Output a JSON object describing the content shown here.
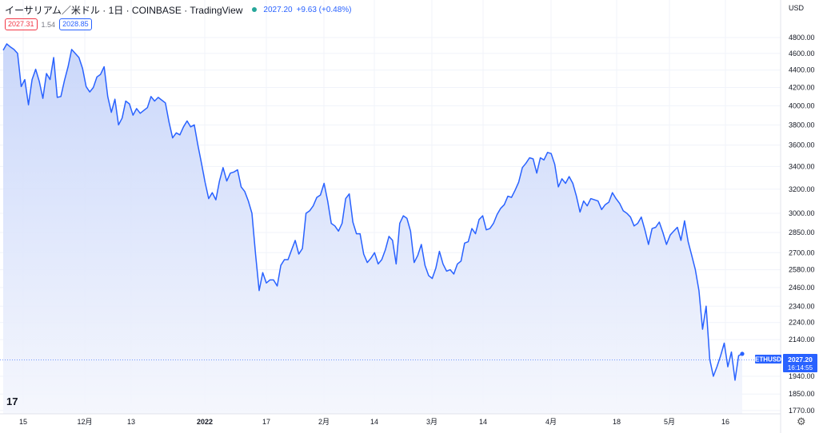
{
  "header": {
    "symbol_title": "イーサリアム／米ドル · 1日 · COINBASE · TradingView",
    "last_price": "2027.20",
    "change": "+9.63 (+0.48%)",
    "sell_price": "2027.31",
    "spread": "1.54",
    "buy_price": "2028.85"
  },
  "currency_label": "USD",
  "tv_logo": "17",
  "price_tag": {
    "symbol": "ETHUSD",
    "price": "2027.20",
    "countdown": "16:14:55"
  },
  "colors": {
    "line": "#2962ff",
    "fill_top": "#c7d5fa",
    "fill_bottom": "#f4f6fd",
    "sell": "#f23645",
    "buy": "#2962ff",
    "status_dot": "#26a69a"
  },
  "chart_data": {
    "type": "area",
    "scale": "log",
    "y_ticks": [
      "4800.00",
      "4600.00",
      "4400.00",
      "4200.00",
      "4000.00",
      "3800.00",
      "3600.00",
      "3400.00",
      "3200.00",
      "3000.00",
      "2850.00",
      "2700.00",
      "2580.00",
      "2460.00",
      "2340.00",
      "2240.00",
      "2140.00",
      "1940.00",
      "1850.00",
      "1770.00"
    ],
    "x_ticks": [
      "15",
      "12月",
      "13",
      "2022",
      "17",
      "2月",
      "14",
      "3月",
      "14",
      "4月",
      "18",
      "5月",
      "16"
    ],
    "ylim": [
      1720,
      4950
    ],
    "series": [
      {
        "values": [
          4640,
          4720,
          4680,
          4650,
          4600,
          4210,
          4290,
          4010,
          4290,
          4410,
          4270,
          4080,
          4360,
          4290,
          4550,
          4090,
          4100,
          4280,
          4440,
          4650,
          4600,
          4550,
          4420,
          4210,
          4150,
          4200,
          4320,
          4350,
          4440,
          4100,
          3930,
          4070,
          3800,
          3870,
          4050,
          4020,
          3900,
          3970,
          3920,
          3950,
          3980,
          4100,
          4050,
          4090,
          4060,
          4030,
          3830,
          3670,
          3720,
          3700,
          3780,
          3840,
          3780,
          3800,
          3600,
          3430,
          3260,
          3120,
          3170,
          3110,
          3270,
          3390,
          3270,
          3340,
          3350,
          3370,
          3220,
          3180,
          3100,
          3000,
          2690,
          2440,
          2560,
          2490,
          2510,
          2510,
          2470,
          2610,
          2650,
          2650,
          2720,
          2790,
          2690,
          2730,
          3000,
          3020,
          3060,
          3130,
          3150,
          3250,
          3100,
          2920,
          2900,
          2860,
          2920,
          3120,
          3160,
          2930,
          2840,
          2840,
          2690,
          2630,
          2660,
          2700,
          2620,
          2650,
          2720,
          2820,
          2790,
          2620,
          2920,
          2980,
          2960,
          2860,
          2630,
          2680,
          2760,
          2610,
          2540,
          2520,
          2590,
          2710,
          2620,
          2570,
          2580,
          2550,
          2620,
          2640,
          2770,
          2780,
          2880,
          2840,
          2950,
          2980,
          2870,
          2880,
          2920,
          2990,
          3040,
          3070,
          3140,
          3130,
          3190,
          3260,
          3390,
          3430,
          3480,
          3470,
          3340,
          3480,
          3460,
          3530,
          3520,
          3420,
          3220,
          3290,
          3250,
          3310,
          3250,
          3140,
          3010,
          3100,
          3060,
          3120,
          3110,
          3100,
          3030,
          3070,
          3090,
          3170,
          3120,
          3080,
          3020,
          3000,
          2970,
          2900,
          2920,
          2970,
          2870,
          2760,
          2880,
          2890,
          2930,
          2850,
          2760,
          2830,
          2860,
          2890,
          2790,
          2940,
          2780,
          2680,
          2580,
          2440,
          2200,
          2340,
          2030,
          1940,
          1990,
          2050,
          2120,
          1990,
          2070,
          1920,
          2050,
          2060
        ]
      }
    ]
  }
}
